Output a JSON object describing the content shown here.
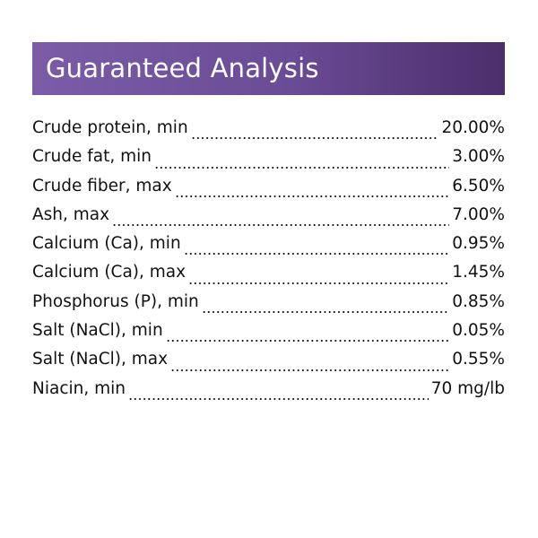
{
  "header": {
    "title": "Guaranteed Analysis"
  },
  "table": {
    "rows": [
      [
        "Crude protein, min",
        "20.00%"
      ],
      [
        "Crude fat, min",
        "3.00%"
      ],
      [
        "Crude fiber, max",
        "6.50%"
      ],
      [
        "Ash, max",
        "7.00%"
      ],
      [
        "Calcium (Ca), min",
        "0.95%"
      ],
      [
        "Calcium (Ca), max",
        "1.45%"
      ],
      [
        "Phosphorus (P), min",
        "0.85%"
      ],
      [
        "Salt (NaCl), min",
        "0.05%"
      ],
      [
        "Salt (NaCl), max",
        "0.55%"
      ],
      [
        "Niacin, min",
        "70 mg/lb"
      ]
    ]
  }
}
